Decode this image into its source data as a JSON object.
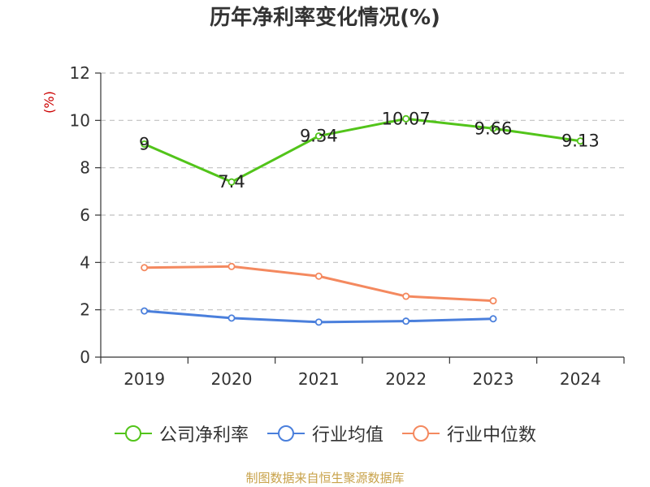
{
  "chart_data": {
    "type": "line",
    "title": "历年净利率变化情况(%)",
    "ylabel": "(%)",
    "xlabel": "",
    "categories": [
      "2019",
      "2020",
      "2021",
      "2022",
      "2023",
      "2024"
    ],
    "ylim": [
      0,
      12
    ],
    "yticks": [
      "0",
      "2",
      "4",
      "6",
      "8",
      "10",
      "12"
    ],
    "grid": true,
    "legend_position": "bottom",
    "series": [
      {
        "name": "公司净利率",
        "values": [
          9,
          7.4,
          9.34,
          10.07,
          9.66,
          9.13
        ],
        "labels": [
          "9",
          "7.4",
          "9.34",
          "10.07",
          "9.66",
          "9.13"
        ],
        "color": "#52c41a",
        "show_labels": true
      },
      {
        "name": "行业均值",
        "values": [
          1.95,
          1.65,
          1.48,
          1.52,
          1.62,
          null
        ],
        "color": "#4a7fdc",
        "show_labels": false
      },
      {
        "name": "行业中位数",
        "values": [
          3.78,
          3.83,
          3.42,
          2.57,
          2.38,
          null
        ],
        "color": "#f4895f",
        "show_labels": false
      }
    ]
  },
  "source_note": "制图数据来自恒生聚源数据库",
  "colors": {
    "axis": "#333333",
    "grid": "#c0c0c0",
    "ylabel": "#cc0000",
    "label_text": "#222222"
  }
}
